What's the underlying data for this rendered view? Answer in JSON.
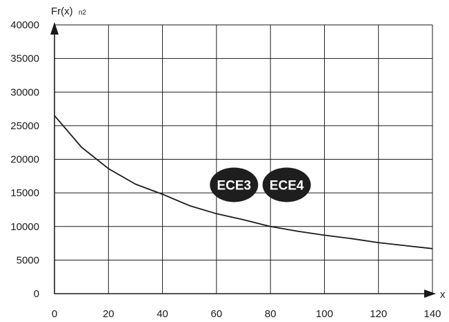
{
  "chart_data": {
    "type": "line",
    "title": "",
    "ylabel": "Fr(x)",
    "ylabel_sub": "n2",
    "xlabel": "x",
    "xlim": [
      0,
      140
    ],
    "ylim": [
      0,
      40000
    ],
    "x_ticks": [
      0,
      20,
      40,
      60,
      80,
      100,
      120,
      140
    ],
    "y_ticks": [
      0,
      5000,
      10000,
      15000,
      20000,
      25000,
      30000,
      35000,
      40000
    ],
    "x_tick_labels": [
      "0",
      "20",
      "40",
      "60",
      "80",
      "100",
      "120",
      "140"
    ],
    "y_tick_labels": [
      "0",
      "5000",
      "10000",
      "15000",
      "20000",
      "25000",
      "30000",
      "35000",
      "40000"
    ],
    "grid": true,
    "series": [
      {
        "x": [
          0,
          10,
          20,
          30,
          40,
          50,
          60,
          70,
          80,
          90,
          100,
          110,
          120,
          130,
          140
        ],
        "y": [
          26500,
          21800,
          18600,
          16300,
          14800,
          13100,
          11900,
          11000,
          10000,
          9300,
          8700,
          8200,
          7600,
          7150,
          6700
        ],
        "color": "#1a1a1a"
      }
    ],
    "annotations": [
      {
        "text": "ECE3",
        "x": 66.5,
        "y": 16200
      },
      {
        "text": "ECE4",
        "x": 86,
        "y": 16200
      }
    ]
  }
}
